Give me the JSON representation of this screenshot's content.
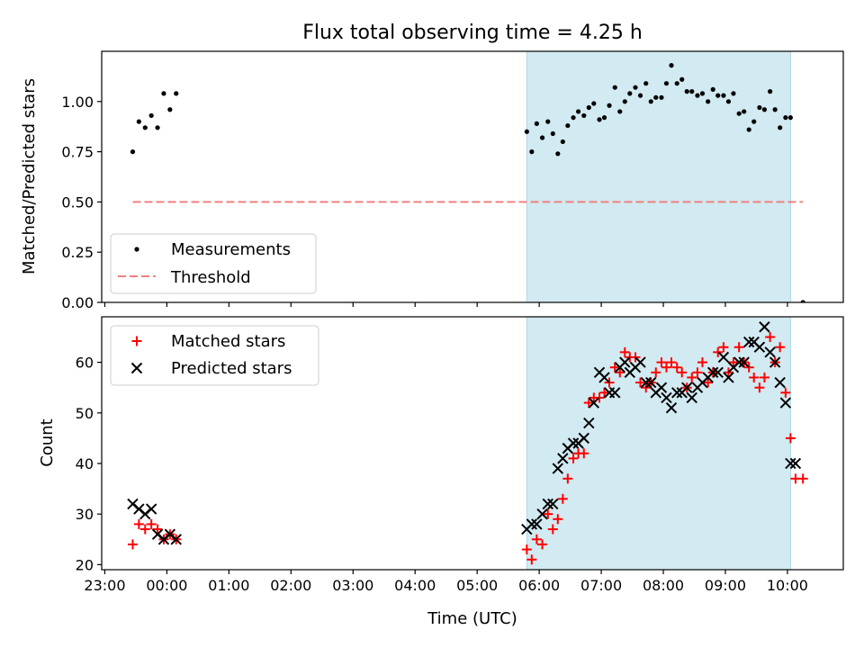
{
  "title": "Flux total observing time = 4.25 h",
  "colors": {
    "band": "#add8e6",
    "measurement": "#000000",
    "threshold": "#f08080",
    "matched": "#ff0000",
    "predicted": "#000000"
  },
  "chart_data": [
    {
      "type": "scatter",
      "ylabel": "Matched/Predicted stars",
      "xlim": [
        -0.05,
        11.9
      ],
      "ylim": [
        0.0,
        1.25
      ],
      "yticks": [
        0.0,
        0.25,
        0.5,
        0.75,
        1.0
      ],
      "ytick_labels": [
        "0.00",
        "0.25",
        "0.50",
        "0.75",
        "1.00"
      ],
      "shaded_interval": [
        6.8,
        11.05
      ],
      "legend": {
        "position": "lower-left",
        "entries": [
          "Measurements",
          "Threshold"
        ]
      },
      "threshold": {
        "name": "Threshold",
        "y": 0.5,
        "x": [
          0.45,
          11.25
        ]
      },
      "series": [
        {
          "name": "Measurements",
          "x": [
            0.45,
            0.55,
            0.65,
            0.75,
            0.85,
            0.95,
            1.05,
            1.15,
            6.8,
            6.88,
            6.96,
            7.05,
            7.14,
            7.22,
            7.3,
            7.38,
            7.46,
            7.55,
            7.63,
            7.72,
            7.8,
            7.88,
            7.97,
            8.05,
            8.13,
            8.22,
            8.3,
            8.38,
            8.46,
            8.55,
            8.63,
            8.72,
            8.8,
            8.88,
            8.97,
            9.05,
            9.13,
            9.22,
            9.3,
            9.38,
            9.46,
            9.55,
            9.63,
            9.72,
            9.8,
            9.88,
            9.97,
            10.05,
            10.13,
            10.22,
            10.3,
            10.38,
            10.46,
            10.55,
            10.63,
            10.72,
            10.8,
            10.88,
            10.97,
            11.05,
            11.25
          ],
          "y": [
            0.75,
            0.9,
            0.87,
            0.93,
            0.87,
            1.04,
            0.96,
            1.04,
            0.85,
            0.75,
            0.89,
            0.82,
            0.9,
            0.84,
            0.74,
            0.8,
            0.88,
            0.92,
            0.95,
            0.93,
            0.97,
            0.99,
            0.91,
            0.92,
            0.98,
            1.07,
            0.95,
            1.0,
            1.04,
            1.07,
            1.03,
            1.09,
            1.0,
            1.02,
            1.02,
            1.09,
            1.18,
            1.09,
            1.11,
            1.05,
            1.05,
            1.03,
            1.04,
            1.0,
            1.06,
            1.03,
            1.03,
            1.0,
            1.04,
            0.94,
            0.95,
            0.86,
            0.9,
            0.97,
            0.96,
            1.05,
            0.96,
            0.87,
            0.92,
            0.92,
            0.0
          ]
        }
      ]
    },
    {
      "type": "scatter",
      "ylabel": "Count",
      "xlabel": "Time (UTC)",
      "xlim": [
        -0.05,
        11.9
      ],
      "ylim": [
        19,
        69
      ],
      "yticks": [
        20,
        30,
        40,
        50,
        60
      ],
      "ytick_labels": [
        "20",
        "30",
        "40",
        "50",
        "60"
      ],
      "xticks": [
        0,
        1,
        2,
        3,
        4,
        5,
        6,
        7,
        8,
        9,
        10,
        11
      ],
      "xtick_labels": [
        "23:00",
        "00:00",
        "01:00",
        "02:00",
        "03:00",
        "04:00",
        "05:00",
        "06:00",
        "07:00",
        "08:00",
        "09:00",
        "10:00"
      ],
      "shaded_interval": [
        6.8,
        11.05
      ],
      "legend": {
        "position": "top-left",
        "entries": [
          "Matched stars",
          "Predicted stars"
        ]
      },
      "series": [
        {
          "name": "Matched stars",
          "x": [
            0.45,
            0.55,
            0.65,
            0.75,
            0.85,
            0.95,
            1.05,
            1.15,
            6.8,
            6.88,
            6.96,
            7.05,
            7.14,
            7.22,
            7.3,
            7.38,
            7.46,
            7.55,
            7.63,
            7.72,
            7.8,
            7.88,
            7.97,
            8.05,
            8.13,
            8.22,
            8.3,
            8.38,
            8.46,
            8.55,
            8.63,
            8.72,
            8.8,
            8.88,
            8.97,
            9.05,
            9.13,
            9.22,
            9.3,
            9.38,
            9.46,
            9.55,
            9.63,
            9.72,
            9.8,
            9.88,
            9.97,
            10.05,
            10.13,
            10.22,
            10.3,
            10.38,
            10.46,
            10.55,
            10.63,
            10.72,
            10.8,
            10.88,
            10.97,
            11.05,
            11.13,
            11.25
          ],
          "y": [
            24,
            28,
            27,
            28,
            27,
            25,
            26,
            25,
            23,
            21,
            25,
            24,
            30,
            27,
            29,
            33,
            37,
            41,
            42,
            42,
            52,
            53,
            53,
            54,
            56,
            59,
            58,
            62,
            61,
            61,
            56,
            55,
            56,
            58,
            60,
            59,
            60,
            59,
            58,
            55,
            57,
            58,
            60,
            56,
            58,
            62,
            63,
            58,
            60,
            63,
            60,
            59,
            57,
            55,
            57,
            65,
            60,
            63,
            54,
            45,
            37,
            37
          ]
        },
        {
          "name": "Predicted stars",
          "x": [
            0.45,
            0.55,
            0.65,
            0.75,
            0.85,
            0.95,
            1.05,
            1.15,
            6.8,
            6.88,
            6.96,
            7.05,
            7.14,
            7.22,
            7.3,
            7.38,
            7.46,
            7.55,
            7.63,
            7.72,
            7.8,
            7.88,
            7.97,
            8.05,
            8.13,
            8.22,
            8.3,
            8.38,
            8.46,
            8.55,
            8.63,
            8.72,
            8.8,
            8.88,
            8.97,
            9.05,
            9.13,
            9.22,
            9.3,
            9.38,
            9.46,
            9.55,
            9.63,
            9.72,
            9.8,
            9.88,
            9.97,
            10.05,
            10.13,
            10.22,
            10.3,
            10.38,
            10.46,
            10.55,
            10.63,
            10.72,
            10.8,
            10.88,
            10.97,
            11.05,
            11.13
          ],
          "y": [
            32,
            31,
            30,
            31,
            26,
            25,
            26,
            25,
            27,
            28,
            28,
            30,
            32,
            32,
            39,
            41,
            43,
            44,
            44,
            45,
            48,
            52,
            58,
            57,
            54,
            54,
            59,
            60,
            58,
            59,
            60,
            56,
            56,
            54,
            55,
            53,
            51,
            54,
            54,
            55,
            53,
            55,
            56,
            57,
            58,
            58,
            61,
            57,
            59,
            60,
            60,
            64,
            64,
            63,
            67,
            62,
            60,
            56,
            52,
            40,
            40
          ]
        }
      ]
    }
  ]
}
